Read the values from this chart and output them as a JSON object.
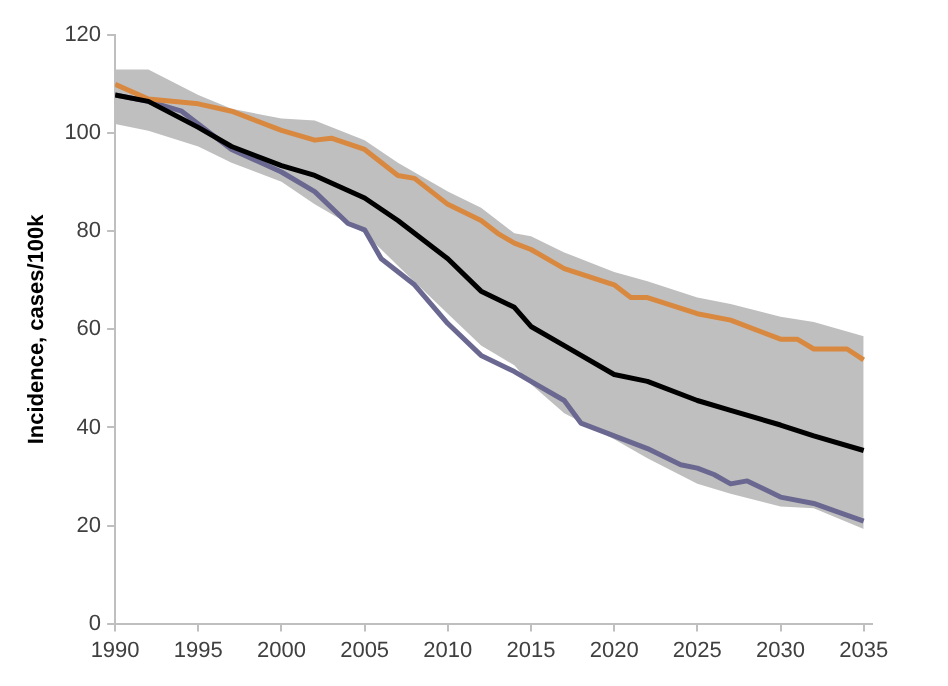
{
  "chart_data": {
    "type": "line",
    "ylabel": "Incidence, cases/100k",
    "xlim": [
      1990,
      2035.5
    ],
    "xticks": [
      1990,
      1995,
      2000,
      2005,
      2010,
      2015,
      2020,
      2025,
      2030,
      2035
    ],
    "ylim": [
      0,
      120
    ],
    "yticks": [
      0,
      20,
      40,
      60,
      80,
      100,
      120
    ],
    "grid": false,
    "legend": false,
    "series": [
      {
        "color": "#000000",
        "x": [
          1990,
          1992,
          1995,
          1997,
          2000,
          2002,
          2005,
          2007,
          2010,
          2012,
          2014,
          2015,
          2017,
          2020,
          2022,
          2025,
          2027,
          2030,
          2032,
          2035
        ],
        "values": [
          107.8,
          106.5,
          101.2,
          97.3,
          93.4,
          91.4,
          86.8,
          82.2,
          74.4,
          67.8,
          64.5,
          60.6,
          56.7,
          50.8,
          49.4,
          45.5,
          43.5,
          40.5,
          38.3,
          35.3
        ],
        "upper": [
          113,
          113,
          107.8,
          105,
          103,
          102.6,
          98.6,
          94,
          88.1,
          84.8,
          79.6,
          79,
          75.7,
          71.7,
          69.8,
          66.5,
          65.2,
          62.6,
          61.5,
          58.6
        ],
        "lower": [
          101.9,
          100.5,
          97.3,
          94,
          90.1,
          85.5,
          79.6,
          73,
          63.2,
          56.7,
          52.7,
          48.8,
          42.9,
          37.6,
          33.7,
          28.5,
          26.5,
          23.9,
          23.5,
          19.3
        ]
      },
      {
        "color": "#d9883f",
        "x": [
          1990,
          1992,
          1995,
          1997,
          2000,
          2002,
          2003,
          2005,
          2007,
          2008,
          2010,
          2012,
          2013,
          2014,
          2015,
          2017,
          2020,
          2021,
          2022,
          2025,
          2027,
          2030,
          2031,
          2032,
          2034,
          2035
        ],
        "values": [
          110,
          107,
          106,
          104.5,
          100.6,
          98.6,
          99,
          96.7,
          91.4,
          90.8,
          85.5,
          82.2,
          79.6,
          77.6,
          76.3,
          72.4,
          69.1,
          66.5,
          66.5,
          63.2,
          61.9,
          58,
          58,
          56,
          56,
          53.8
        ]
      },
      {
        "color": "#6a6890",
        "x": [
          1990,
          1992,
          1994,
          1995,
          1997,
          2000,
          2002,
          2004,
          2005,
          2006,
          2008,
          2010,
          2012,
          2014,
          2015,
          2017,
          2018,
          2020,
          2022,
          2024,
          2025,
          2026,
          2027,
          2028,
          2030,
          2032,
          2035
        ],
        "values": [
          107.8,
          106.5,
          104.5,
          101.9,
          96.7,
          92.1,
          88.1,
          81.6,
          80.3,
          74.4,
          69.1,
          61.2,
          54.7,
          51.4,
          49.4,
          45.5,
          40.9,
          38.3,
          35.7,
          32.4,
          31.7,
          30.4,
          28.5,
          29.1,
          25.8,
          24.5,
          20.9
        ]
      }
    ]
  }
}
